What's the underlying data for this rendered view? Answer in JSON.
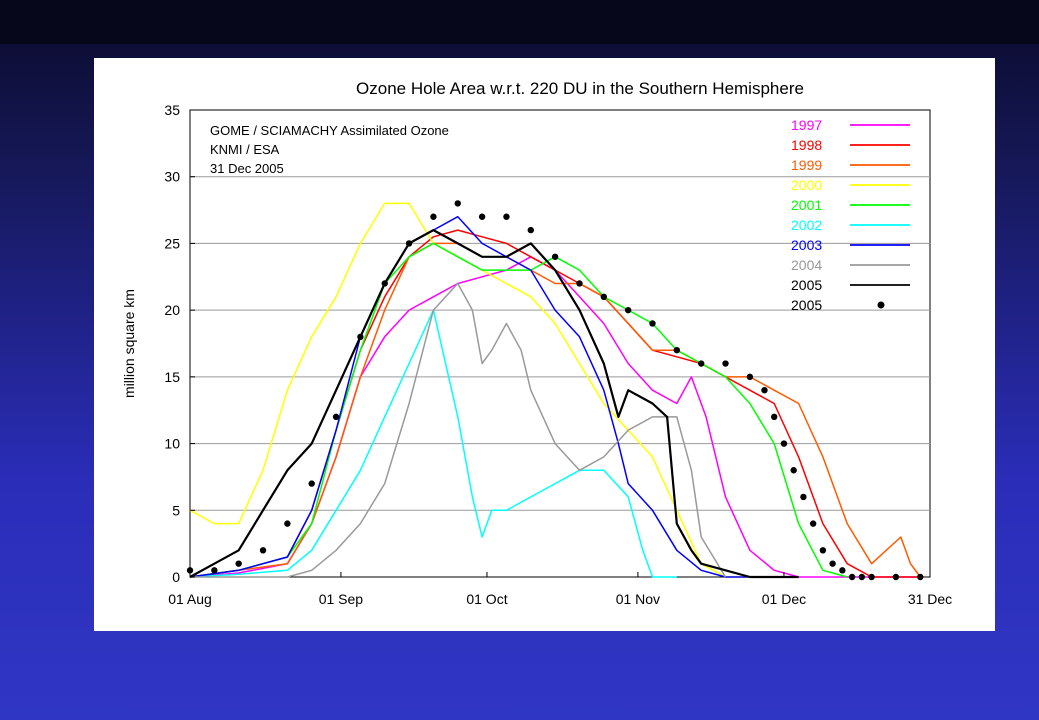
{
  "chart_data": {
    "type": "line",
    "title": "Ozone Hole Area w.r.t. 220 DU in the Southern Hemisphere",
    "annotations": [
      "GOME / SCIAMACHY Assimilated Ozone",
      "KNMI / ESA",
      "31 Dec 2005"
    ],
    "ylabel": "million square km",
    "xlabel": "",
    "x_unit": "day index (0 = 01 Aug)",
    "xlim": [
      0,
      152
    ],
    "ylim": [
      0,
      35
    ],
    "x_ticks": [
      {
        "label": "01 Aug",
        "x": 0
      },
      {
        "label": "01 Sep",
        "x": 31
      },
      {
        "label": "01 Oct",
        "x": 61
      },
      {
        "label": "01 Nov",
        "x": 92
      },
      {
        "label": "01 Dec",
        "x": 122
      },
      {
        "label": "31 Dec",
        "x": 152
      }
    ],
    "y_ticks": [
      0,
      5,
      10,
      15,
      20,
      25,
      30,
      35
    ],
    "grid": true,
    "legend_position": "top-right",
    "series": [
      {
        "name": "1997",
        "color": "#ff00ff",
        "style": "line",
        "x": [
          0,
          10,
          20,
          25,
          30,
          35,
          40,
          45,
          50,
          55,
          60,
          65,
          70,
          75,
          80,
          85,
          90,
          95,
          100,
          103,
          106,
          110,
          115,
          120,
          125,
          130,
          135,
          140,
          145,
          150
        ],
        "y": [
          0,
          0.3,
          1,
          4,
          9,
          15,
          18,
          20,
          21,
          22,
          22.5,
          23,
          24,
          23,
          21,
          19,
          16,
          14,
          13,
          15,
          12,
          6,
          2,
          0.5,
          0,
          0,
          0,
          0,
          0,
          0
        ]
      },
      {
        "name": "1998",
        "color": "#ff0000",
        "style": "line",
        "x": [
          0,
          10,
          20,
          25,
          30,
          35,
          40,
          45,
          50,
          55,
          60,
          65,
          70,
          75,
          80,
          85,
          90,
          95,
          100,
          105,
          110,
          115,
          120,
          125,
          130,
          135,
          140,
          145,
          150
        ],
        "y": [
          0,
          0.5,
          1.5,
          5,
          11,
          17,
          21,
          24,
          25.5,
          26,
          25.5,
          25,
          24,
          23,
          22,
          21,
          19,
          17,
          16.5,
          16,
          15,
          14,
          13,
          9,
          4,
          1,
          0,
          0,
          0
        ]
      },
      {
        "name": "1999",
        "color": "#ff5a00",
        "style": "line",
        "x": [
          0,
          10,
          20,
          25,
          30,
          35,
          40,
          45,
          50,
          55,
          60,
          65,
          70,
          75,
          80,
          85,
          90,
          95,
          100,
          105,
          110,
          115,
          120,
          125,
          130,
          135,
          140,
          143,
          146,
          148,
          150
        ],
        "y": [
          0,
          0.5,
          1,
          4,
          9,
          15,
          20,
          24,
          25,
          25,
          24,
          24,
          23,
          22,
          22,
          21,
          19,
          17,
          17,
          16,
          15,
          15,
          14,
          13,
          9,
          4,
          1,
          2,
          3,
          1,
          0
        ]
      },
      {
        "name": "2000",
        "color": "#ffff00",
        "style": "line",
        "x": [
          0,
          5,
          10,
          15,
          20,
          25,
          30,
          35,
          40,
          45,
          50,
          55,
          60,
          65,
          70,
          75,
          80,
          85,
          90,
          95,
          100,
          105,
          110,
          115,
          120
        ],
        "y": [
          5,
          4,
          4,
          8,
          14,
          18,
          21,
          25,
          28,
          28,
          25,
          24,
          23,
          22,
          21,
          19,
          16,
          13,
          11,
          9,
          5,
          1,
          0,
          0,
          0
        ]
      },
      {
        "name": "2001",
        "color": "#00ff00",
        "style": "line",
        "x": [
          0,
          10,
          20,
          25,
          30,
          35,
          40,
          45,
          50,
          55,
          60,
          65,
          70,
          75,
          80,
          85,
          90,
          95,
          100,
          105,
          110,
          115,
          120,
          125,
          130,
          135
        ],
        "y": [
          0,
          0.5,
          1.5,
          4,
          11,
          17,
          22,
          24,
          25,
          24,
          23,
          23,
          23,
          24,
          23,
          21,
          20,
          19,
          17,
          16,
          15,
          13,
          10,
          4,
          0.5,
          0
        ]
      },
      {
        "name": "2002",
        "color": "#00ffff",
        "style": "line",
        "x": [
          0,
          10,
          20,
          25,
          30,
          35,
          40,
          45,
          50,
          55,
          58,
          60,
          62,
          65,
          70,
          75,
          80,
          85,
          90,
          93,
          95,
          100
        ],
        "y": [
          0,
          0.2,
          0.5,
          2,
          5,
          8,
          12,
          16,
          20,
          12,
          6,
          3,
          5,
          5,
          6,
          7,
          8,
          8,
          6,
          2,
          0,
          0
        ]
      },
      {
        "name": "2003",
        "color": "#0000ff",
        "style": "line",
        "x": [
          0,
          10,
          20,
          25,
          30,
          35,
          40,
          45,
          50,
          55,
          60,
          65,
          70,
          75,
          80,
          85,
          88,
          90,
          95,
          100,
          105,
          110,
          115,
          120,
          125
        ],
        "y": [
          0,
          0.5,
          1.5,
          5,
          11,
          18,
          22,
          25,
          26,
          27,
          25,
          24,
          23,
          20,
          18,
          14,
          10,
          7,
          5,
          2,
          0.5,
          0,
          0,
          0,
          0
        ]
      },
      {
        "name": "2004",
        "color": "#999999",
        "style": "line",
        "x": [
          0,
          20,
          25,
          30,
          35,
          40,
          45,
          50,
          55,
          58,
          60,
          62,
          65,
          68,
          70,
          75,
          80,
          85,
          90,
          95,
          100,
          103,
          105,
          110
        ],
        "y": [
          0,
          0,
          0.5,
          2,
          4,
          7,
          13,
          20,
          22,
          20,
          16,
          17,
          19,
          17,
          14,
          10,
          8,
          9,
          11,
          12,
          12,
          8,
          3,
          0
        ]
      },
      {
        "name": "2005",
        "color": "#000000",
        "style": "line",
        "x": [
          0,
          5,
          10,
          15,
          20,
          25,
          30,
          35,
          40,
          45,
          50,
          55,
          60,
          65,
          70,
          75,
          80,
          85,
          88,
          90,
          95,
          98,
          100,
          103,
          105,
          110,
          115,
          120,
          125
        ],
        "y": [
          0,
          1,
          2,
          5,
          8,
          10,
          14,
          18,
          22,
          25,
          26,
          25,
          24,
          24,
          25,
          23,
          20,
          16,
          12,
          14,
          13,
          12,
          4,
          2,
          1,
          0.5,
          0,
          0,
          0
        ]
      },
      {
        "name": "2005",
        "color": "#000000",
        "style": "dots",
        "x": [
          0,
          5,
          10,
          15,
          20,
          25,
          30,
          35,
          40,
          45,
          50,
          55,
          60,
          65,
          70,
          75,
          80,
          85,
          90,
          95,
          100,
          105,
          110,
          115,
          118,
          120,
          122,
          124,
          126,
          128,
          130,
          132,
          134,
          136,
          138,
          140,
          145,
          150
        ],
        "y": [
          0.5,
          0.5,
          1,
          2,
          4,
          7,
          12,
          18,
          22,
          25,
          27,
          28,
          27,
          27,
          26,
          24,
          22,
          21,
          20,
          19,
          17,
          16,
          16,
          15,
          14,
          12,
          10,
          8,
          6,
          4,
          2,
          1,
          0.5,
          0,
          0,
          0,
          0,
          0
        ]
      }
    ]
  }
}
